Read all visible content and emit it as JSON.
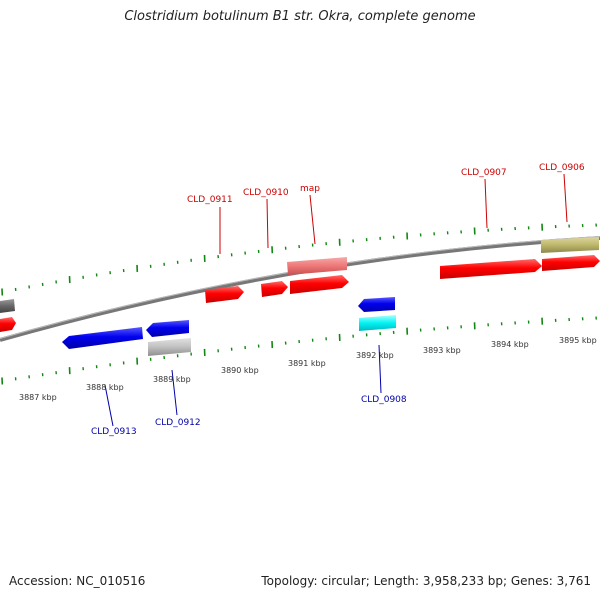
{
  "title": "Clostridium botulinum B1 str. Okra, complete genome",
  "footer": {
    "accession": "Accession: NC_010516",
    "topology": "Topology: circular; Length: 3,958,233 bp; Genes: 3,761"
  },
  "kbp_labels": [
    "3887 kbp",
    "3888 kbp",
    "3889 kbp",
    "3890 kbp",
    "3891 kbp",
    "3892 kbp",
    "3893 kbp",
    "3894 kbp",
    "3895 kbp"
  ],
  "gene_labels": {
    "forward": [
      "CLD_0911",
      "CLD_0910",
      "map",
      "CLD_0907",
      "CLD_0906"
    ],
    "reverse": [
      "CLD_0913",
      "CLD_0912",
      "CLD_0908"
    ]
  },
  "colors": {
    "forward_gene": "#ff0000",
    "forward_label": "#cc0000",
    "reverse_gene": "#0000ee",
    "reverse_label": "#0000aa",
    "tick": "#118811",
    "backbone": "#777777",
    "pink_feature": "#f08080",
    "olive_feature": "#bdb76b",
    "cyan_feature": "#00ffff",
    "gray_feature": "#bbbbbb"
  }
}
